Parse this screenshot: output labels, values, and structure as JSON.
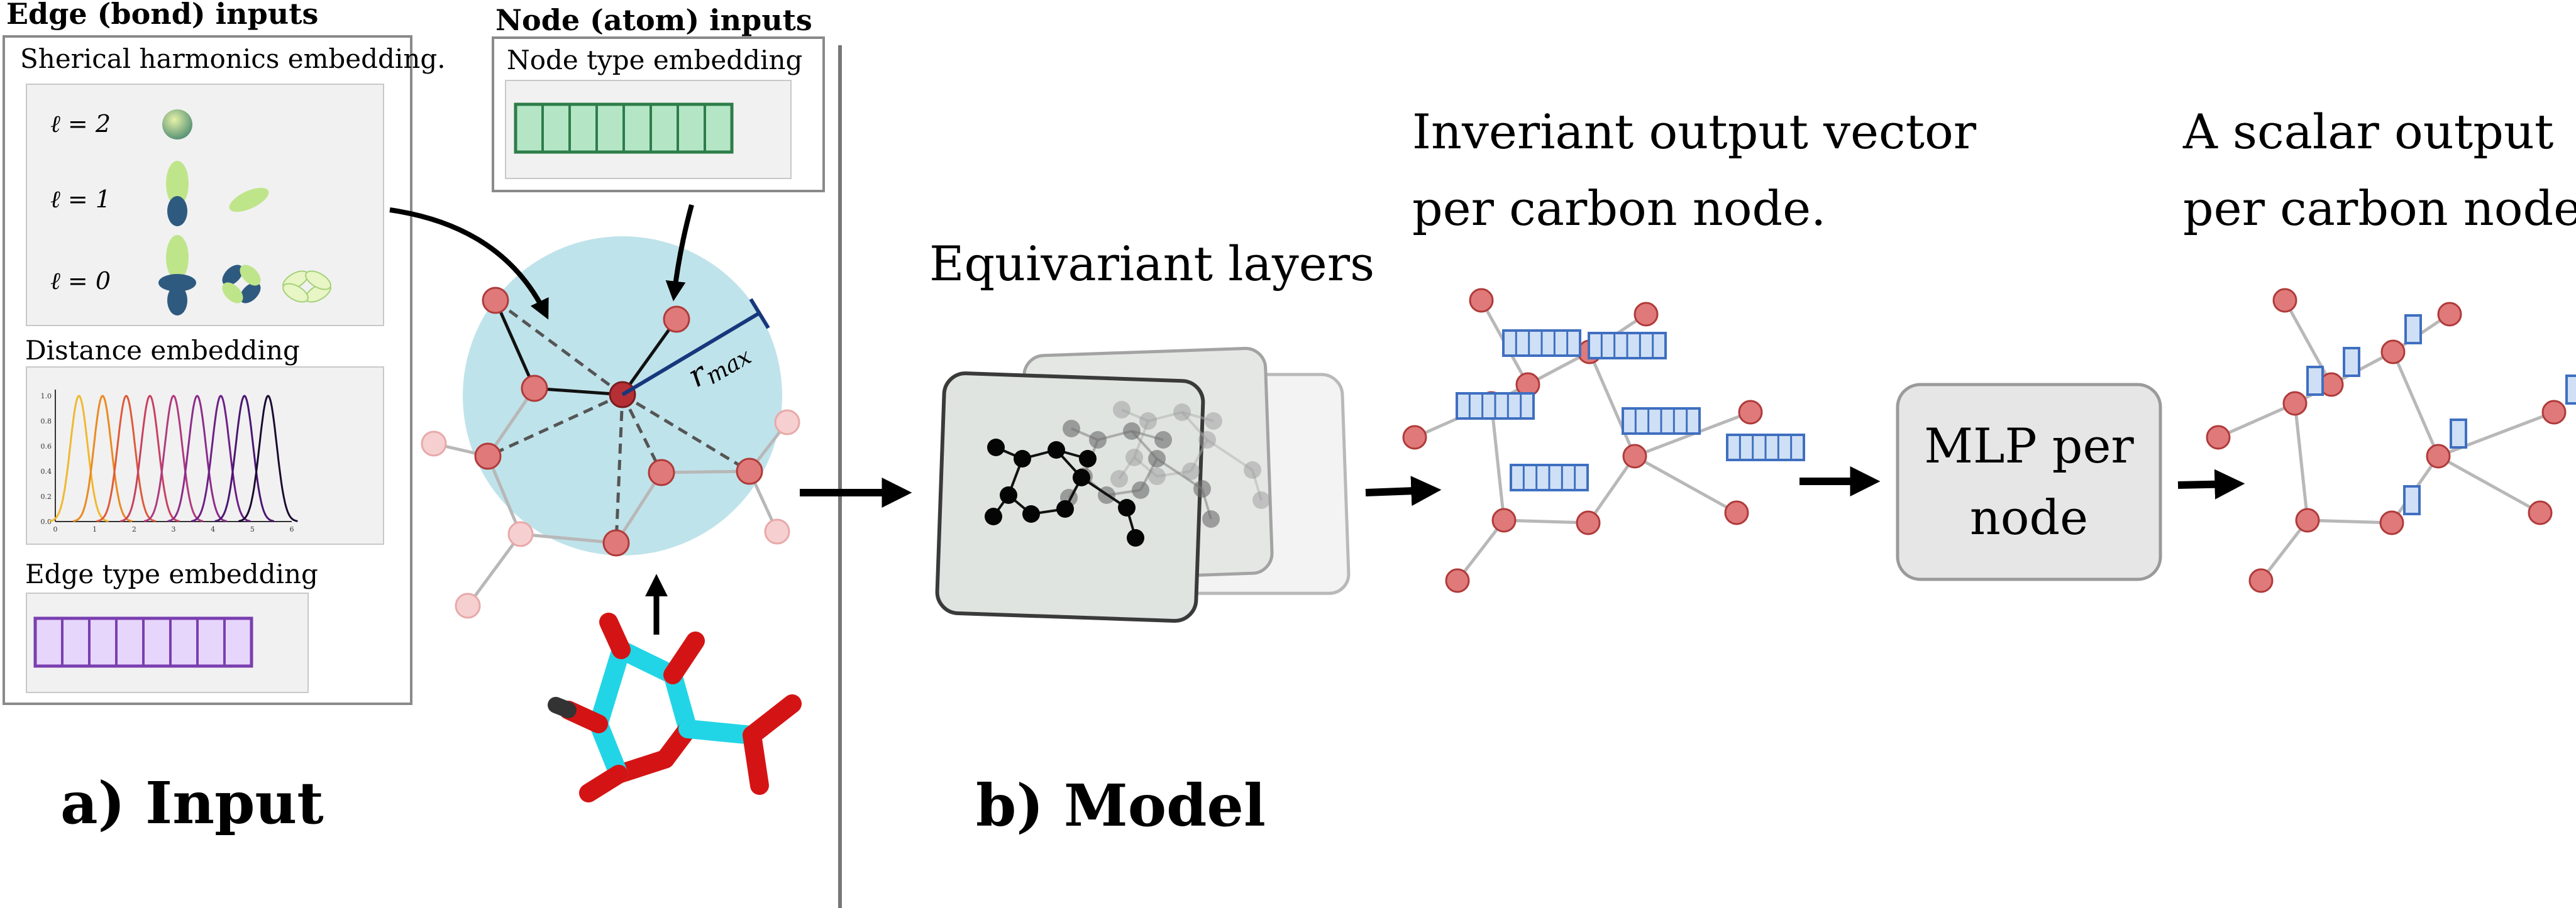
{
  "colors": {
    "node_fill": "#e07a7a",
    "node_stroke": "#b03a3a",
    "node_faded_fill": "#f6d0d0",
    "center_node": "#b52f35",
    "bond": "#b8b8b8",
    "cutoff_circle": "#bfe3ea",
    "rmax_line": "#17377d",
    "panel_bg": "#f1f1f1",
    "panel_border": "#7a7a7a",
    "node_vec_fill": "#b4e6c6",
    "node_vec_stroke": "#2e7d4a",
    "edge_vec_fill": "#e7d6fb",
    "edge_vec_stroke": "#7a3fb0",
    "out_vec_fill": "#cfe0f6",
    "out_vec_stroke": "#3f6fc0",
    "mlp_fill": "#e6e6e6",
    "mlp_stroke": "#9a9a9a",
    "molecule_carbon": "#22d5e6",
    "molecule_oxygen": "#d41414",
    "divider": "#777777",
    "orbital_green": "#bfe58a",
    "orbital_blue": "#2e5a80"
  },
  "input": {
    "edge_title": "Edge (bond) inputs",
    "node_title": "Node (atom) inputs",
    "sh_label": "Sherical harmonics embedding.",
    "l_labels": [
      "ℓ = 2",
      "ℓ = 1",
      "ℓ = 0"
    ],
    "distance_label": "Distance embedding",
    "distance_y_ticks": [
      "1.0",
      "0.8",
      "0.6",
      "0.4",
      "0.2",
      "0.0"
    ],
    "distance_x_ticks": [
      "0",
      "1",
      "2",
      "3",
      "4",
      "5",
      "6"
    ],
    "distance_curve_colors": [
      "#f0b830",
      "#ea8a22",
      "#de5a3a",
      "#c84060",
      "#b03a7e",
      "#8c2c8a",
      "#6c1f86",
      "#4a1670",
      "#1a0a30"
    ],
    "edge_type_label": "Edge type embedding",
    "node_type_label": "Node type embedding",
    "rmax_label": "r",
    "rmax_sub": "max",
    "section_label": "a) Input"
  },
  "model": {
    "layers_label": "Equivariant layers",
    "section_label": "b) Model",
    "invariant_label_line1": "Inveriant output vector",
    "invariant_label_line2": "per carbon node.",
    "mlp_label_line1": "MLP per",
    "mlp_label_line2": "node",
    "scalar_label_line1": "A scalar output",
    "scalar_label_line2": "per carbon node."
  }
}
